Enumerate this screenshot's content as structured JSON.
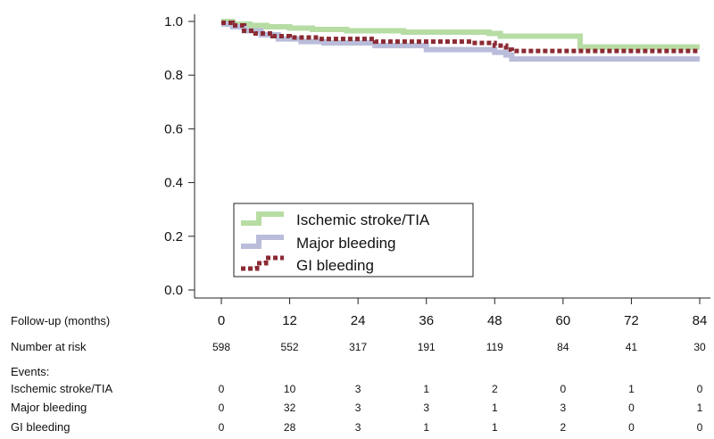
{
  "chart_data": {
    "type": "line",
    "subtype": "step",
    "x": [
      0,
      12,
      24,
      36,
      48,
      60,
      72,
      84
    ],
    "xlim": [
      0,
      84
    ],
    "ylim": [
      0.0,
      1.0
    ],
    "y_ticks": [
      "0.0",
      "0.2",
      "0.4",
      "0.6",
      "0.8",
      "1.0"
    ],
    "x_axis_row_label": "Follow-up (months)",
    "x_tick_labels": [
      "0",
      "12",
      "24",
      "36",
      "48",
      "60",
      "72",
      "84"
    ],
    "legend_placement": "lower-left",
    "series": [
      {
        "name": "Ischemic stroke/TIA",
        "color": "#b7dca4",
        "style": "solid",
        "steps": [
          [
            0,
            1.0
          ],
          [
            2,
            0.99
          ],
          [
            5,
            0.985
          ],
          [
            8,
            0.98
          ],
          [
            12,
            0.975
          ],
          [
            16,
            0.97
          ],
          [
            22,
            0.965
          ],
          [
            32,
            0.96
          ],
          [
            47,
            0.955
          ],
          [
            49,
            0.945
          ],
          [
            63,
            0.905
          ],
          [
            84,
            0.905
          ]
        ]
      },
      {
        "name": "Major bleeding",
        "color": "#b9bdda",
        "style": "solid",
        "steps": [
          [
            0,
            0.99
          ],
          [
            2,
            0.98
          ],
          [
            4,
            0.965
          ],
          [
            7,
            0.95
          ],
          [
            10,
            0.935
          ],
          [
            14,
            0.925
          ],
          [
            18,
            0.92
          ],
          [
            27,
            0.91
          ],
          [
            36,
            0.895
          ],
          [
            48,
            0.885
          ],
          [
            50,
            0.875
          ],
          [
            51,
            0.86
          ],
          [
            84,
            0.86
          ]
        ]
      },
      {
        "name": "GI bleeding",
        "color": "#8b2a33",
        "style": "dotted",
        "steps": [
          [
            0,
            0.995
          ],
          [
            2,
            0.985
          ],
          [
            4,
            0.965
          ],
          [
            6,
            0.955
          ],
          [
            9,
            0.945
          ],
          [
            12,
            0.94
          ],
          [
            17,
            0.935
          ],
          [
            27,
            0.925
          ],
          [
            44,
            0.92
          ],
          [
            48,
            0.91
          ],
          [
            50,
            0.895
          ],
          [
            51,
            0.89
          ],
          [
            84,
            0.89
          ]
        ]
      }
    ]
  },
  "table": {
    "number_at_risk_label": "Number at risk",
    "number_at_risk": [
      "598",
      "552",
      "317",
      "191",
      "119",
      "84",
      "41",
      "30"
    ],
    "events_label": "Events:",
    "rows": [
      {
        "label": "Ischemic stroke/TIA",
        "values": [
          "0",
          "10",
          "3",
          "1",
          "2",
          "0",
          "1",
          "0"
        ]
      },
      {
        "label": "Major bleeding",
        "values": [
          "0",
          "32",
          "3",
          "3",
          "1",
          "3",
          "0",
          "1"
        ]
      },
      {
        "label": "GI bleeding",
        "values": [
          "0",
          "28",
          "3",
          "1",
          "1",
          "2",
          "0",
          "0"
        ]
      }
    ]
  }
}
